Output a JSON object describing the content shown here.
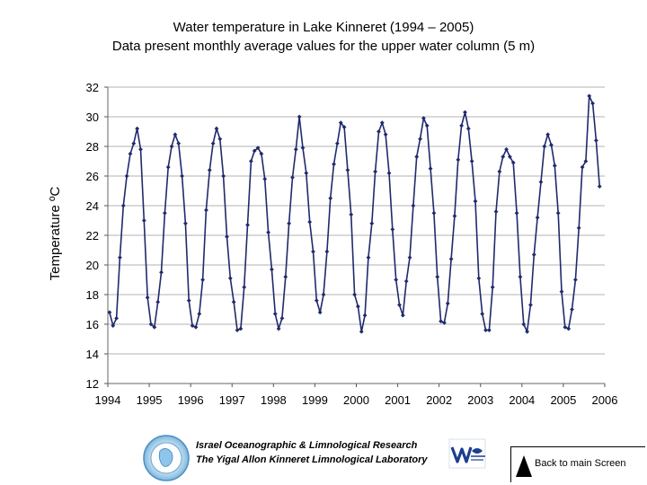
{
  "chart_data": {
    "type": "line",
    "title": "Water temperature in Lake Kinneret (1994 – 2005)",
    "subtitle": "Data present monthly average values for the upper water column (5 m)",
    "ylabel": "Temperature ºC",
    "xlabel": "",
    "xlim": [
      1994,
      2006
    ],
    "ylim": [
      12,
      32
    ],
    "x_ticks": [
      "1994",
      "1995",
      "1996",
      "1997",
      "1998",
      "1999",
      "2000",
      "2001",
      "2002",
      "2003",
      "2004",
      "2005",
      "2006"
    ],
    "y_ticks": [
      "12",
      "14",
      "16",
      "18",
      "20",
      "22",
      "24",
      "26",
      "28",
      "30",
      "32"
    ],
    "grid": "horizontal",
    "line_color": "#1f2a6b",
    "series": [
      {
        "values": [
          16.8,
          15.9,
          16.4,
          20.5,
          24.0,
          26.0,
          27.5,
          28.2,
          29.2,
          27.8,
          23.0,
          17.8,
          16.0,
          15.8,
          17.5,
          19.5,
          23.5,
          26.6,
          28.0,
          28.8,
          28.2,
          26.0,
          22.8,
          17.6,
          15.9,
          15.8,
          16.7,
          19.0,
          23.7,
          26.4,
          28.2,
          29.2,
          28.5,
          26.0,
          21.9,
          19.1,
          17.5,
          15.6,
          15.7,
          18.5,
          22.7,
          27.0,
          27.7,
          27.9,
          27.5,
          25.8,
          22.2,
          19.7,
          16.7,
          15.7,
          16.4,
          19.2,
          22.8,
          25.9,
          27.8,
          30.0,
          27.9,
          26.2,
          22.9,
          20.9,
          17.6,
          16.8,
          18.0,
          20.9,
          24.5,
          26.8,
          28.2,
          29.6,
          29.3,
          26.4,
          23.4,
          18.0,
          17.2,
          15.5,
          16.6,
          20.5,
          22.8,
          26.3,
          29.0,
          29.6,
          28.8,
          26.2,
          22.4,
          19.0,
          17.3,
          16.6,
          18.9,
          20.5,
          24.0,
          27.3,
          28.5,
          29.9,
          29.4,
          26.5,
          23.5,
          19.2,
          16.2,
          16.1,
          17.4,
          20.4,
          23.3,
          27.1,
          29.4,
          30.3,
          29.2,
          27.0,
          24.3,
          19.1,
          16.7,
          15.6,
          15.6,
          18.5,
          23.6,
          26.3,
          27.3,
          27.8,
          27.3,
          26.9,
          23.5,
          19.2,
          16.0,
          15.5,
          17.3,
          20.7,
          23.2,
          25.6,
          28.0,
          28.8,
          28.1,
          26.7,
          23.5,
          18.2,
          15.8,
          15.7,
          17.0,
          19.0,
          22.5,
          26.6,
          27.0,
          31.4,
          30.9,
          28.4,
          25.3
        ]
      }
    ]
  },
  "footer": {
    "line1": "Israel Oceanographic & Limnological Research",
    "line2": "The Yigal Allon Kinneret Limnological Laboratory"
  },
  "back_button": {
    "label": "Back to main Screen"
  }
}
